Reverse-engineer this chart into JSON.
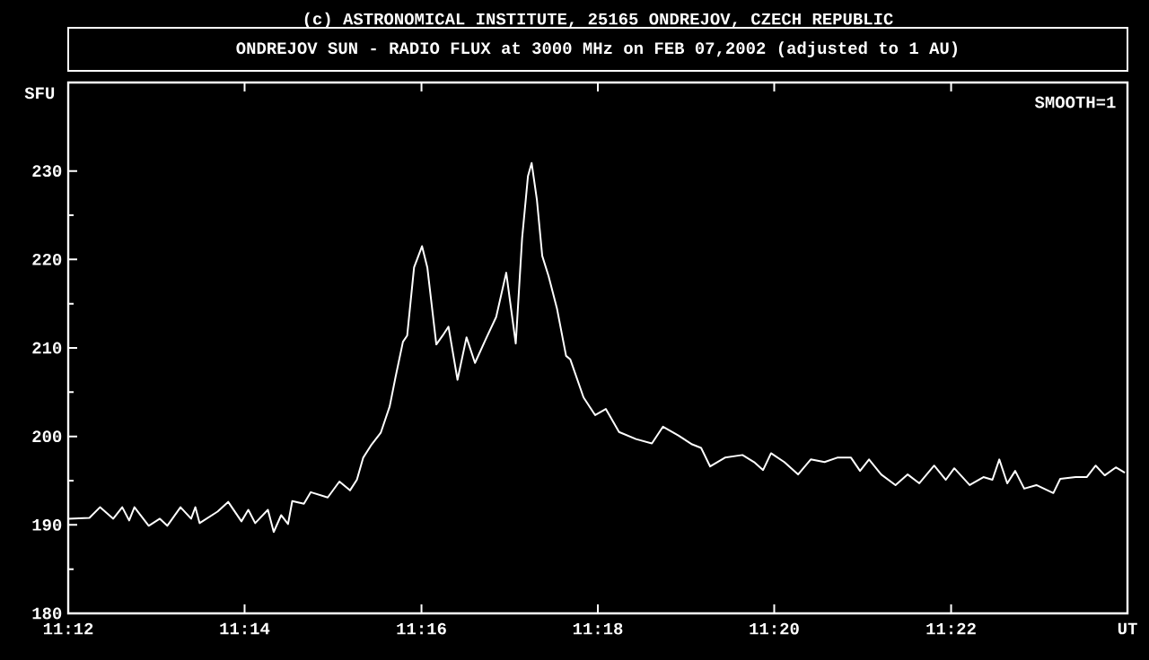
{
  "chart_data": {
    "type": "line",
    "title": "ONDREJOV SUN - RADIO FLUX at 3000 MHz on FEB 07,2002 (adjusted to 1 AU)",
    "ylabel": "SFU",
    "annotations": [
      "(c) ASTRONOMICAL INSTITUTE, 25165 ONDREJOV, CZECH REPUBLIC",
      "SMOOTH=1"
    ],
    "xlim": [
      11.2,
      11.4
    ],
    "ylim": [
      180,
      240
    ],
    "xticks": [
      {
        "value": 11.2,
        "label": "11:12"
      },
      {
        "value": 11.2333,
        "label": "11:14"
      },
      {
        "value": 11.2667,
        "label": "11:16"
      },
      {
        "value": 11.3,
        "label": "11:18"
      },
      {
        "value": 11.3333,
        "label": "11:20"
      },
      {
        "value": 11.3667,
        "label": "11:22"
      },
      {
        "value": 11.4,
        "label": "UT"
      }
    ],
    "yticks": [
      180,
      190,
      200,
      210,
      220,
      230
    ],
    "series": [
      {
        "color": "#ffffff",
        "x": [
          11.2001,
          11.204,
          11.206,
          11.2085,
          11.2102,
          11.2115,
          11.2125,
          11.2152,
          11.2173,
          11.2187,
          11.2212,
          11.2232,
          11.224,
          11.2248,
          11.2282,
          11.2302,
          11.2327,
          11.234,
          11.2353,
          11.2377,
          11.2388,
          11.2402,
          11.2415,
          11.2423,
          11.2445,
          11.2458,
          11.249,
          11.2512,
          11.2532,
          11.2545,
          11.2557,
          11.2573,
          11.259,
          11.2607,
          11.2618,
          11.2632,
          11.264,
          11.2653,
          11.2668,
          11.2678,
          11.2695,
          11.2707,
          11.2718,
          11.2735,
          11.2752,
          11.2768,
          11.279,
          11.2808,
          11.2827,
          11.2845,
          11.2857,
          11.2868,
          11.2875,
          11.2885,
          11.2895,
          11.2907,
          11.2923,
          11.294,
          11.2948,
          11.2973,
          11.2995,
          11.3015,
          11.304,
          11.3072,
          11.3102,
          11.3123,
          11.3152,
          11.3178,
          11.3195,
          11.3212,
          11.324,
          11.3273,
          11.3295,
          11.3312,
          11.3327,
          11.3352,
          11.3378,
          11.3402,
          11.3428,
          11.3452,
          11.3478,
          11.3495,
          11.3512,
          11.3535,
          11.3562,
          11.3585,
          11.3607,
          11.3635,
          11.3657,
          11.3673,
          11.3702,
          11.3728,
          11.3745,
          11.3758,
          11.3773,
          11.3788,
          11.3805,
          11.3828,
          11.386,
          11.3873,
          11.3902,
          11.3923,
          11.394,
          11.3957,
          11.3978,
          11.3995
        ],
        "values": [
          190.7,
          190.8,
          192.0,
          190.7,
          192.0,
          190.5,
          192.0,
          189.9,
          190.7,
          189.9,
          192.0,
          190.7,
          192.0,
          190.2,
          191.5,
          192.6,
          190.4,
          191.7,
          190.2,
          191.7,
          189.2,
          191.1,
          190.1,
          192.7,
          192.4,
          193.7,
          193.1,
          194.9,
          193.9,
          195.1,
          197.6,
          199.1,
          200.4,
          203.4,
          206.7,
          210.7,
          211.4,
          219.1,
          221.5,
          219.1,
          210.4,
          211.4,
          212.4,
          206.4,
          211.2,
          208.3,
          211.2,
          213.5,
          218.5,
          210.5,
          222.4,
          229.4,
          230.9,
          226.7,
          220.4,
          218.1,
          214.4,
          209.1,
          208.7,
          204.4,
          202.4,
          203.1,
          200.5,
          199.7,
          199.2,
          201.1,
          200.1,
          199.1,
          198.7,
          196.6,
          197.6,
          197.9,
          197.1,
          196.2,
          198.1,
          197.1,
          195.7,
          197.4,
          197.1,
          197.6,
          197.6,
          196.1,
          197.4,
          195.7,
          194.5,
          195.7,
          194.7,
          196.7,
          195.1,
          196.4,
          194.5,
          195.4,
          195.1,
          197.4,
          194.7,
          196.1,
          194.1,
          194.5,
          193.6,
          195.2,
          195.4,
          195.4,
          196.7,
          195.6,
          196.5,
          195.9
        ]
      }
    ]
  }
}
